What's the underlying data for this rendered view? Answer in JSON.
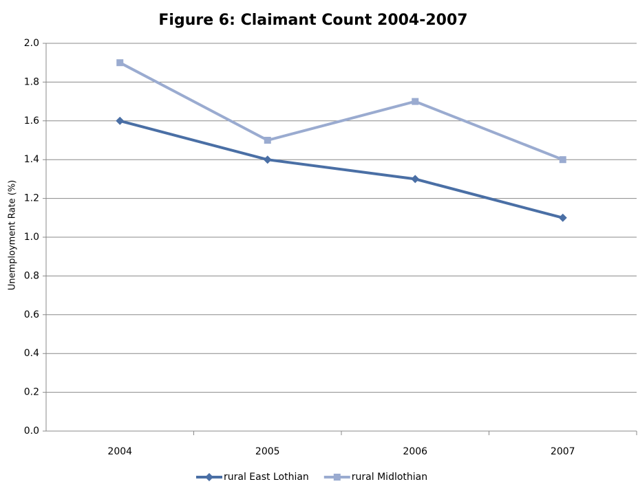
{
  "chart_data": {
    "type": "line",
    "title": "Figure 6: Claimant Count 2004-2007",
    "y_label": "Unemployment Rate (%)",
    "categories": [
      "2004",
      "2005",
      "2006",
      "2007"
    ],
    "series": [
      {
        "name": "rural East Lothian",
        "color": "#4a6fa5",
        "marker": "diamond",
        "values": [
          1.6,
          1.4,
          1.3,
          1.1
        ]
      },
      {
        "name": "rural Midlothian",
        "color": "#9aabd0",
        "marker": "square",
        "values": [
          1.9,
          1.5,
          1.7,
          1.4
        ]
      }
    ],
    "ylim": [
      0,
      2
    ],
    "yticks": [
      {
        "value": 0,
        "label": "0.0"
      },
      0.2,
      0.4,
      0.6,
      0.8,
      {
        "value": 1,
        "label": "1.0"
      },
      1.2,
      1.4,
      1.6,
      1.8,
      {
        "value": 2,
        "label": "2.0"
      }
    ],
    "grid": true,
    "legend": "bottom"
  }
}
